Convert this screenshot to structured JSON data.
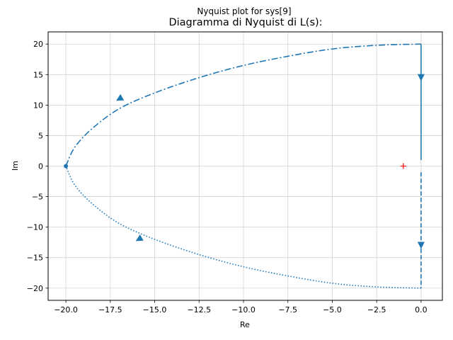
{
  "figure": {
    "suptitle": "Nyquist plot for sys[9]"
  },
  "chart_data": {
    "type": "line",
    "title": "Diagramma di Nyquist di L(s):",
    "xlabel": "Re",
    "ylabel": "Im",
    "xlim": [
      -21.0,
      1.2
    ],
    "ylim": [
      -22.0,
      22.0
    ],
    "xticks": [
      -20.0,
      -17.5,
      -15.0,
      -12.5,
      -10.0,
      -7.5,
      -5.0,
      -2.5,
      0.0
    ],
    "xtick_labels": [
      "−20.0",
      "−17.5",
      "−15.0",
      "−12.5",
      "−10.0",
      "−7.5",
      "−5.0",
      "−2.5",
      "0.0"
    ],
    "yticks": [
      -20,
      -15,
      -10,
      -5,
      0,
      5,
      10,
      15,
      20
    ],
    "ytick_labels": [
      "−20",
      "−15",
      "−10",
      "−5",
      "0",
      "5",
      "10",
      "15",
      "20"
    ],
    "grid": true,
    "colors": {
      "curve": "#1f77b4",
      "critical_point": "#ff0000",
      "grid": "#d3d3d3"
    },
    "series": [
      {
        "style": "dashdot",
        "points": [
          [
            -20,
            0
          ],
          [
            -19.5,
            3.1
          ],
          [
            -18.5,
            6.2
          ],
          [
            -17,
            9.4
          ],
          [
            -15,
            12.0
          ],
          [
            -12.5,
            14.5
          ],
          [
            -10,
            16.5
          ],
          [
            -7.5,
            18.0
          ],
          [
            -5,
            19.2
          ],
          [
            -2.5,
            19.8
          ],
          [
            0,
            20
          ]
        ]
      },
      {
        "style": "solid",
        "points": [
          [
            0,
            20
          ],
          [
            0,
            1
          ]
        ]
      },
      {
        "style": "dashed",
        "points": [
          [
            0,
            -1
          ],
          [
            0,
            -20
          ]
        ]
      },
      {
        "style": "dotted",
        "points": [
          [
            0,
            -20
          ],
          [
            -2.5,
            -19.8
          ],
          [
            -5,
            -19.2
          ],
          [
            -7.5,
            -18.0
          ],
          [
            -10,
            -16.5
          ],
          [
            -12.5,
            -14.5
          ],
          [
            -15,
            -12.0
          ],
          [
            -17,
            -9.4
          ],
          [
            -18.5,
            -6.2
          ],
          [
            -19.5,
            -3.1
          ],
          [
            -20,
            0
          ]
        ]
      }
    ],
    "arrows": [
      {
        "x": -17.0,
        "y": 11.0,
        "dir": "down-left"
      },
      {
        "x": 0.0,
        "y": 14.5,
        "dir": "down"
      },
      {
        "x": 0.0,
        "y": -13.0,
        "dir": "down"
      },
      {
        "x": -15.9,
        "y": -12.0,
        "dir": "down-left"
      }
    ],
    "start_point": {
      "x": -20.0,
      "y": 0.0
    },
    "critical_point": {
      "x": -1.0,
      "y": 0.0
    }
  }
}
